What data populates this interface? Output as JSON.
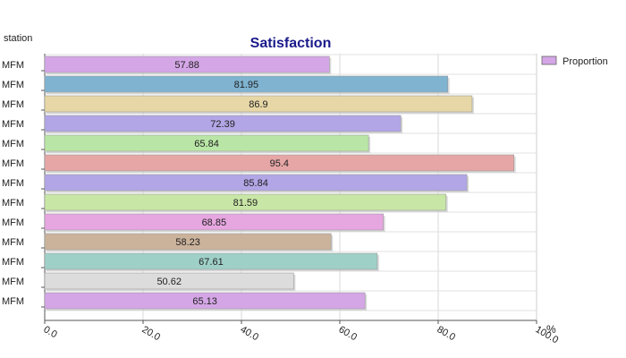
{
  "chart_data": {
    "type": "bar",
    "orientation": "horizontal",
    "title": "Satisfaction",
    "ylabel": "station",
    "xlabel": "%",
    "categories": [
      "MFM",
      "MFM",
      "MFM",
      "MFM",
      "MFM",
      "MFM",
      "MFM",
      "MFM",
      "MFM",
      "MFM",
      "MFM",
      "MFM",
      "MFM"
    ],
    "series": [
      {
        "name": "Proportion",
        "values": [
          57.88,
          81.95,
          86.9,
          72.39,
          65.84,
          95.4,
          85.84,
          81.59,
          68.85,
          58.23,
          67.61,
          50.62,
          65.13
        ]
      }
    ],
    "data_labels": [
      "57.88",
      "81.95",
      "86.9",
      "72.39",
      "65.84",
      "95.4",
      "85.84",
      "81.59",
      "68.85",
      "58.23",
      "67.61",
      "50.62",
      "65.13"
    ],
    "xlim": [
      0,
      100
    ],
    "x_ticks": [
      0,
      20,
      40,
      60,
      80,
      100
    ],
    "x_tick_labels": [
      "0.0",
      "20.0",
      "40.0",
      "60.0",
      "80.0",
      "100.0"
    ],
    "grid": true,
    "legend": "top-right",
    "bar_colors": [
      "#d4a6e6",
      "#7fb3d0",
      "#e7d7a6",
      "#b2a6e6",
      "#b9e6a6",
      "#e6a6a6",
      "#b2a6e6",
      "#c8e6a6",
      "#e6a6e0",
      "#cbb29b",
      "#9fd0c8",
      "#dcdcdc",
      "#d4a6e6"
    ],
    "legend_color": "#d4a6e6",
    "title_color": "#1a1a8c"
  }
}
